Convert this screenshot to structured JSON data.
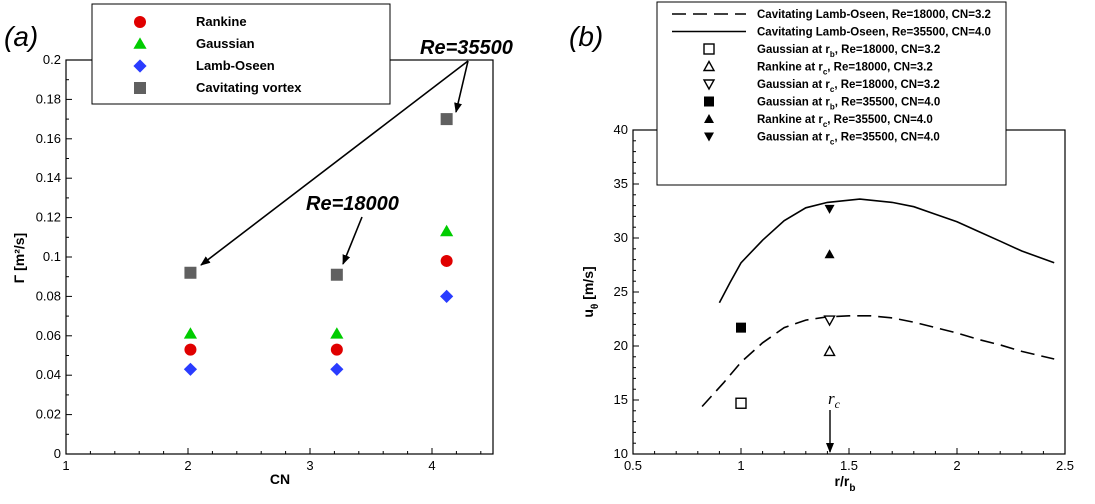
{
  "panel_a": {
    "letter": "(a)",
    "annotation_1": "Re=35500",
    "annotation_2": "Re=18000"
  },
  "panel_b": {
    "letter": "(b)",
    "rc_marker": "r",
    "rc_marker_sub": "c"
  },
  "chart_data": [
    {
      "type": "scatter",
      "xlabel": "CN",
      "ylabel": "Γ [m²/s]",
      "xlim": [
        1,
        4.5
      ],
      "ylim": [
        0,
        0.2
      ],
      "xticks": [
        "1",
        "2",
        "3",
        "4"
      ],
      "yticks": [
        "0",
        "0.02",
        "0.04",
        "0.06",
        "0.08",
        "0.1",
        "0.12",
        "0.14",
        "0.16",
        "0.18",
        "0.2"
      ],
      "grid": false,
      "legend_position": "top",
      "series": [
        {
          "name": "Rankine",
          "color": "#e00000",
          "marker": "circle",
          "x": [
            2.02,
            3.22,
            4.12
          ],
          "y": [
            0.053,
            0.053,
            0.098
          ]
        },
        {
          "name": "Gaussian",
          "color": "#00cc00",
          "marker": "triangle-up",
          "x": [
            2.02,
            3.22,
            4.12
          ],
          "y": [
            0.061,
            0.061,
            0.113
          ]
        },
        {
          "name": "Lamb-Oseen",
          "color": "#2a3cff",
          "marker": "diamond",
          "x": [
            2.02,
            3.22,
            4.12
          ],
          "y": [
            0.043,
            0.043,
            0.08
          ]
        },
        {
          "name": "Cavitating vortex",
          "color": "#606060",
          "marker": "square",
          "x": [
            2.02,
            3.22,
            4.12
          ],
          "y": [
            0.092,
            0.091,
            0.17
          ]
        }
      ]
    },
    {
      "type": "line",
      "xlabel": "r/r",
      "xlabel_sub": "b",
      "ylabel": "u",
      "ylabel_sub": "θ",
      "ylabel_unit": " [m/s]",
      "xlim": [
        0.5,
        2.5
      ],
      "ylim": [
        10,
        40
      ],
      "xticks": [
        "0.5",
        "1",
        "1.5",
        "2",
        "2.5"
      ],
      "yticks": [
        "10",
        "15",
        "20",
        "25",
        "30",
        "35",
        "40"
      ],
      "grid": false,
      "legend_position": "top",
      "series": [
        {
          "name": "Cavitating Lamb-Oseen, Re=18000, CN=3.2",
          "style": "dashed",
          "x": [
            0.82,
            0.92,
            1.0,
            1.1,
            1.2,
            1.3,
            1.4,
            1.5,
            1.6,
            1.7,
            1.8,
            1.9,
            2.0,
            2.1,
            2.2,
            2.3,
            2.45
          ],
          "y": [
            14.4,
            16.6,
            18.5,
            20.3,
            21.7,
            22.4,
            22.7,
            22.8,
            22.8,
            22.6,
            22.2,
            21.7,
            21.2,
            20.6,
            20.1,
            19.5,
            18.8
          ]
        },
        {
          "name": "Cavitating Lamb-Oseen, Re=35500, CN=4.0",
          "style": "solid",
          "x": [
            0.9,
            0.95,
            1.0,
            1.1,
            1.2,
            1.3,
            1.4,
            1.5,
            1.55,
            1.7,
            1.8,
            1.9,
            2.0,
            2.1,
            2.2,
            2.3,
            2.45
          ],
          "y": [
            24.0,
            25.9,
            27.7,
            29.8,
            31.6,
            32.8,
            33.3,
            33.5,
            33.6,
            33.3,
            32.9,
            32.2,
            31.5,
            30.6,
            29.7,
            28.8,
            27.7
          ]
        },
        {
          "name": "Gaussian at r",
          "sub": "b",
          "rest": ", Re=18000, CN=3.2",
          "marker": "square-open",
          "x": [
            1.0
          ],
          "y": [
            14.7
          ]
        },
        {
          "name": "Rankine at r",
          "sub": "c",
          "rest": ", Re=18000, CN=3.2",
          "marker": "triangle-up-open",
          "x": [
            1.41
          ],
          "y": [
            19.5
          ]
        },
        {
          "name": "Gaussian at r",
          "sub": "c",
          "rest": ", Re=18000, CN=3.2",
          "marker": "triangle-down-open",
          "x": [
            1.41
          ],
          "y": [
            22.4
          ]
        },
        {
          "name": "Gaussian at r",
          "sub": "b",
          "rest": ", Re=35500, CN=4.0",
          "marker": "square-filled",
          "x": [
            1.0
          ],
          "y": [
            21.7
          ]
        },
        {
          "name": "Rankine at r",
          "sub": "c",
          "rest": ", Re=35500, CN=4.0",
          "marker": "triangle-up-filled",
          "x": [
            1.41
          ],
          "y": [
            28.5
          ]
        },
        {
          "name": "Gaussian at r",
          "sub": "c",
          "rest": ", Re=35500, CN=4.0",
          "marker": "triangle-down-filled",
          "x": [
            1.41
          ],
          "y": [
            32.7
          ]
        }
      ]
    }
  ]
}
